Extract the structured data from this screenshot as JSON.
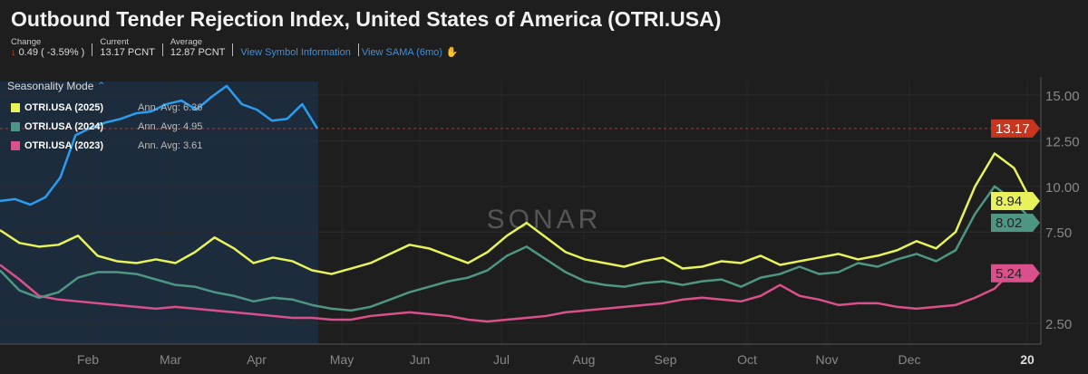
{
  "header": {
    "title": "Outbound Tender Rejection Index, United States of America (OTRI.USA)",
    "change_label": "Change",
    "change_value": "0.49 ( -3.59% )",
    "current_label": "Current",
    "current_value": "13.17 PCNT",
    "average_label": "Average",
    "average_value": "12.87 PCNT",
    "link_symbol": "View Symbol Information",
    "link_sama": "View SAMA (6mo)"
  },
  "legend": {
    "title": "Seasonality Mode",
    "items": [
      {
        "name": "OTRI.USA (2025)",
        "avg": "Ann. Avg: 6.36",
        "color": "#e8f25a"
      },
      {
        "name": "OTRI.USA (2024)",
        "avg": "Ann. Avg: 4.95",
        "color": "#4e9683"
      },
      {
        "name": "OTRI.USA (2023)",
        "avg": "Ann. Avg: 3.61",
        "color": "#d9508a"
      }
    ]
  },
  "watermark": "SONAR",
  "chart_data": {
    "type": "line",
    "ylim": [
      1.5,
      16.5
    ],
    "yticks": [
      "2.50",
      "7.50",
      "10.00",
      "12.50",
      "15.00"
    ],
    "xticks": [
      "Feb",
      "Mar",
      "Apr",
      "May",
      "Jun",
      "Jul",
      "Aug",
      "Sep",
      "Oct",
      "Nov",
      "Dec",
      "20"
    ],
    "current_line": 13.17,
    "series": [
      {
        "name": "current",
        "color": "#2a9df0",
        "end_week": 16.3,
        "label": "13.17",
        "label_color": "#c8351f",
        "values": [
          9.2,
          9.3,
          9.0,
          9.4,
          10.5,
          12.8,
          13.2,
          13.5,
          13.7,
          14.0,
          14.1,
          14.5,
          14.7,
          14.2,
          14.9,
          15.5,
          14.5,
          14.2,
          13.6,
          13.7,
          14.5,
          13.17
        ]
      },
      {
        "name": "OTRI.USA (2025)",
        "color": "#e8f25a",
        "end_week": 54,
        "label": "8.94",
        "label_color": "#e8f25a",
        "values": [
          7.6,
          6.9,
          6.7,
          6.8,
          7.3,
          6.2,
          5.9,
          5.8,
          6.0,
          5.8,
          6.4,
          7.2,
          6.6,
          5.8,
          6.1,
          5.9,
          5.4,
          5.2,
          5.5,
          5.8,
          6.3,
          6.8,
          6.6,
          6.2,
          5.8,
          6.4,
          7.3,
          8.0,
          7.2,
          6.4,
          6.0,
          5.8,
          5.6,
          5.9,
          6.1,
          5.5,
          5.6,
          5.9,
          5.8,
          6.2,
          5.7,
          5.9,
          6.1,
          6.3,
          6.0,
          6.2,
          6.5,
          7.0,
          6.6,
          7.5,
          10.0,
          11.8,
          11.0,
          8.94
        ]
      },
      {
        "name": "OTRI.USA (2024)",
        "color": "#4e9683",
        "end_week": 54,
        "label": "8.02",
        "label_color": "#4e9683",
        "values": [
          5.4,
          4.3,
          3.9,
          4.2,
          5.0,
          5.3,
          5.3,
          5.2,
          4.9,
          4.6,
          4.5,
          4.2,
          4.0,
          3.7,
          3.9,
          3.8,
          3.5,
          3.3,
          3.2,
          3.4,
          3.8,
          4.2,
          4.5,
          4.8,
          5.0,
          5.4,
          6.2,
          6.7,
          6.0,
          5.3,
          4.8,
          4.6,
          4.5,
          4.7,
          4.8,
          4.6,
          4.8,
          4.9,
          4.5,
          5.0,
          5.2,
          5.6,
          5.2,
          5.3,
          5.8,
          5.6,
          6.0,
          6.3,
          5.9,
          6.5,
          8.5,
          10.0,
          9.2,
          8.02
        ]
      },
      {
        "name": "OTRI.USA (2023)",
        "color": "#d9508a",
        "end_week": 54,
        "label": "5.24",
        "label_color": "#d9508a",
        "values": [
          5.7,
          4.9,
          4.0,
          3.8,
          3.7,
          3.6,
          3.5,
          3.4,
          3.3,
          3.4,
          3.3,
          3.2,
          3.1,
          3.0,
          2.9,
          2.8,
          2.8,
          2.7,
          2.7,
          2.9,
          3.0,
          3.1,
          3.0,
          2.9,
          2.7,
          2.6,
          2.7,
          2.8,
          2.9,
          3.1,
          3.2,
          3.3,
          3.4,
          3.5,
          3.6,
          3.8,
          3.9,
          3.8,
          3.7,
          4.0,
          4.6,
          4.0,
          3.8,
          3.5,
          3.6,
          3.6,
          3.4,
          3.3,
          3.4,
          3.5,
          3.9,
          4.4,
          5.5,
          5.24
        ]
      }
    ]
  }
}
